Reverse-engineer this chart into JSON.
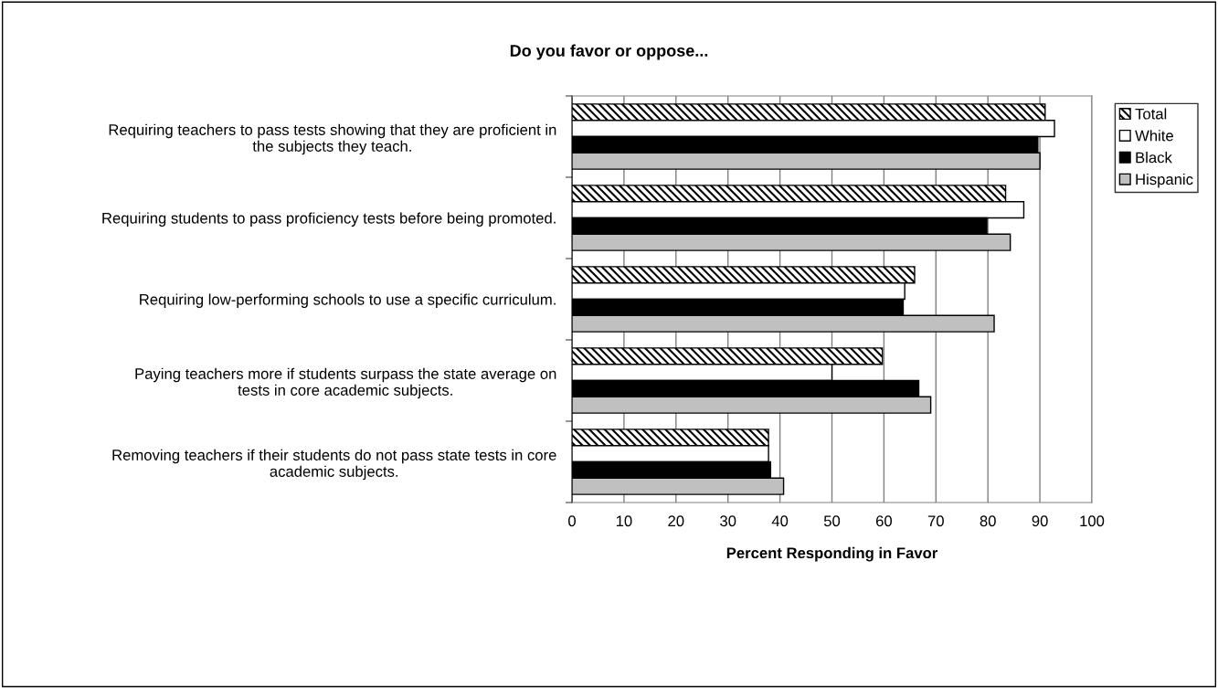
{
  "chart_data": {
    "type": "bar",
    "orientation": "horizontal",
    "title": "Do you favor or oppose...",
    "xlabel": "Percent Responding in Favor",
    "categories": [
      "Requiring teachers to pass tests showing that they are proficient in\nthe subjects they teach.",
      "Requiring students to pass proficiency tests before being promoted.",
      "Requiring low-performing schools to use a specific curriculum.",
      "Paying teachers more if students surpass the state average on\ntests in core academic subjects.",
      "Removing teachers if their students do not pass state tests in core\nacademic subjects."
    ],
    "series": [
      {
        "name": "Total",
        "color": "#000000",
        "values": [
          91,
          83.4,
          65.9,
          59.7,
          37.8
        ]
      },
      {
        "name": "White",
        "color": "#ffffff",
        "values": [
          92.8,
          86.9,
          64.0,
          50.0,
          37.8
        ]
      },
      {
        "name": "Black",
        "color": "#000000",
        "values": [
          89.6,
          79.8,
          63.7,
          66.7,
          38.2
        ]
      },
      {
        "name": "Hispanic",
        "color": "#c0c0c0",
        "values": [
          90.0,
          84.3,
          81.2,
          69.0,
          40.7
        ]
      }
    ],
    "xlim": [
      0,
      100
    ],
    "xticks": [
      0,
      10,
      20,
      30,
      40,
      50,
      60,
      70,
      80,
      90,
      100
    ],
    "grid": "x",
    "legend": "top right"
  }
}
